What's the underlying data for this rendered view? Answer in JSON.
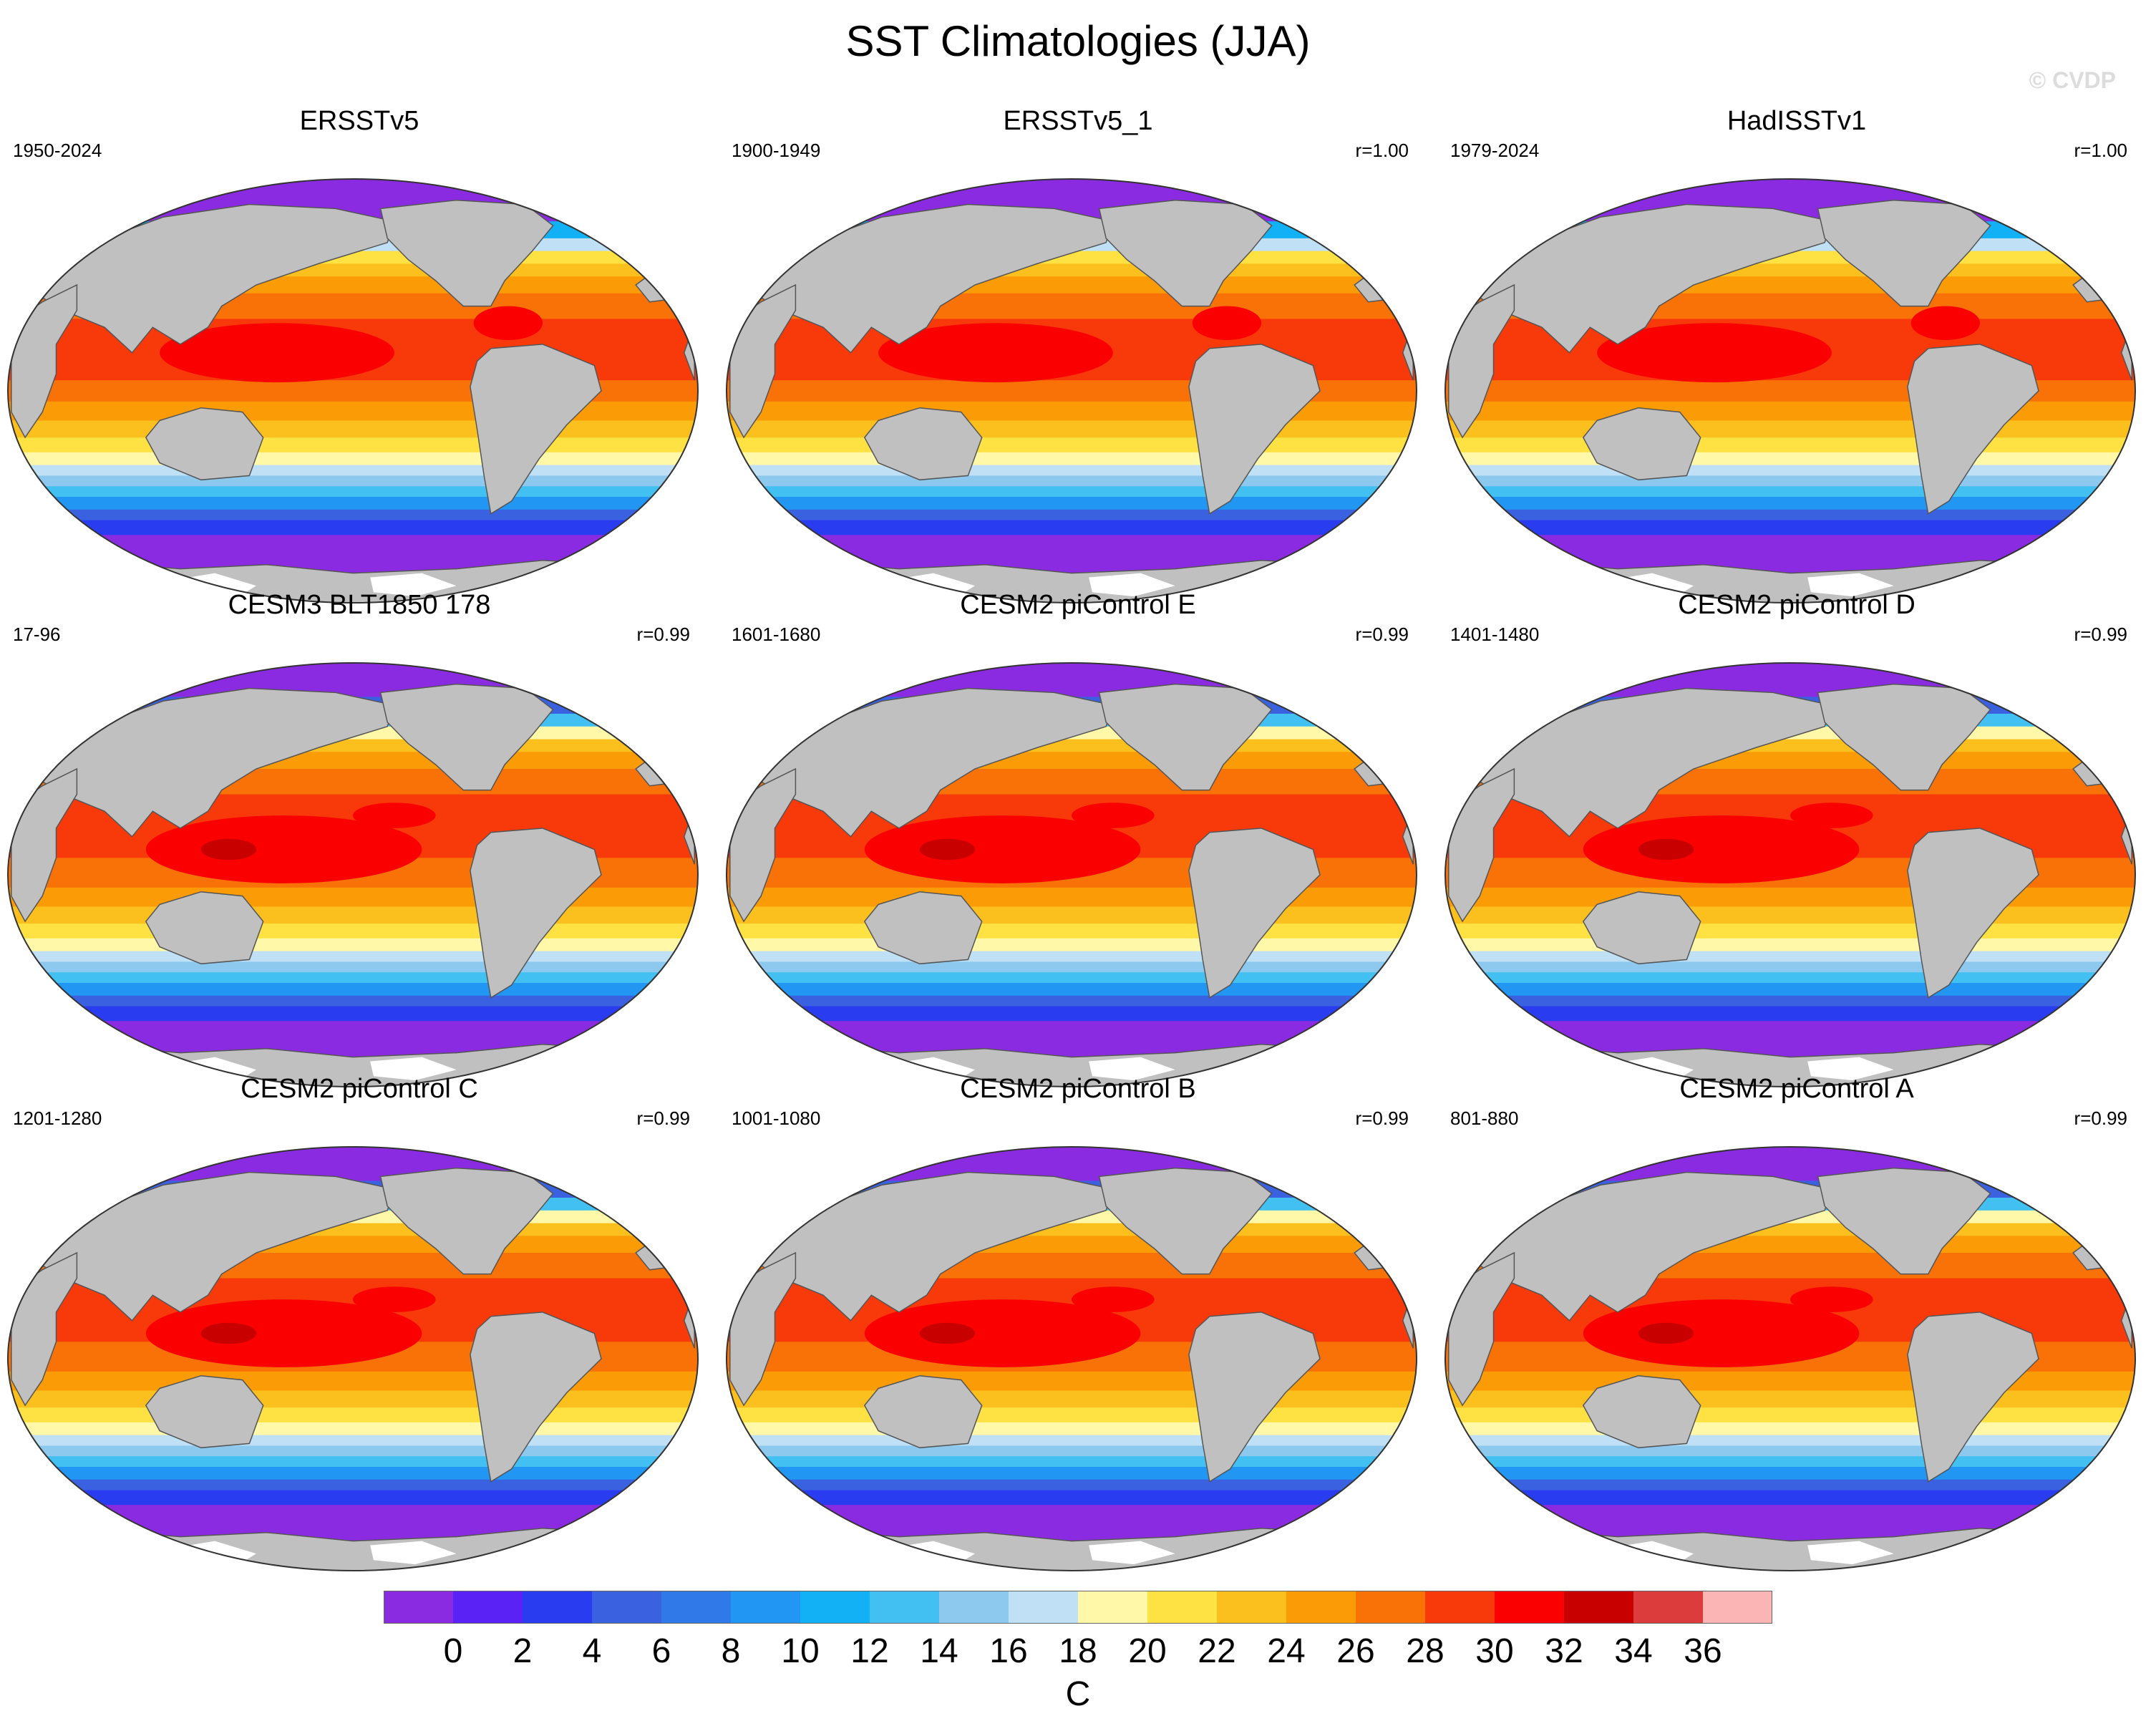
{
  "title": "SST Climatologies (JJA)",
  "watermark": "© CVDP",
  "panels": [
    {
      "title": "ERSSTv5",
      "years": "1950-2024",
      "corr": "",
      "map": "observed"
    },
    {
      "title": "ERSSTv5_1",
      "years": "1900-1949",
      "corr": "r=1.00",
      "map": "observed"
    },
    {
      "title": "HadISSTv1",
      "years": "1979-2024",
      "corr": "r=1.00",
      "map": "observed"
    },
    {
      "title": "CESM3 BLT1850 178",
      "years": "17-96",
      "corr": "r=0.99",
      "map": "model"
    },
    {
      "title": "CESM2 piControl E",
      "years": "1601-1680",
      "corr": "r=0.99",
      "map": "model"
    },
    {
      "title": "CESM2 piControl D",
      "years": "1401-1480",
      "corr": "r=0.99",
      "map": "model"
    },
    {
      "title": "CESM2 piControl C",
      "years": "1201-1280",
      "corr": "r=0.99",
      "map": "model"
    },
    {
      "title": "CESM2 piControl B",
      "years": "1001-1080",
      "corr": "r=0.99",
      "map": "model"
    },
    {
      "title": "CESM2 piControl A",
      "years": "801-880",
      "corr": "r=0.99",
      "map": "model"
    }
  ],
  "colorbar": {
    "label": "C",
    "ticks": [
      "0",
      "2",
      "4",
      "6",
      "8",
      "10",
      "12",
      "14",
      "16",
      "18",
      "20",
      "22",
      "24",
      "26",
      "28",
      "30",
      "32",
      "34",
      "36"
    ],
    "colors": [
      "#8a2be2",
      "#5a22f5",
      "#2a3cf0",
      "#3a62e0",
      "#2f7ae8",
      "#2196f3",
      "#12b0f5",
      "#43c0f2",
      "#8dc9ee",
      "#bfe0f5",
      "#fff8a8",
      "#fee142",
      "#fbbf1e",
      "#fb9b05",
      "#f97208",
      "#f83a0a",
      "#fb0000",
      "#c80000",
      "#dc3c3c",
      "#fbb5b5"
    ]
  },
  "map_colors": {
    "land": "#c0c0c0",
    "ice": "#ffffff",
    "coast": "#555555"
  }
}
